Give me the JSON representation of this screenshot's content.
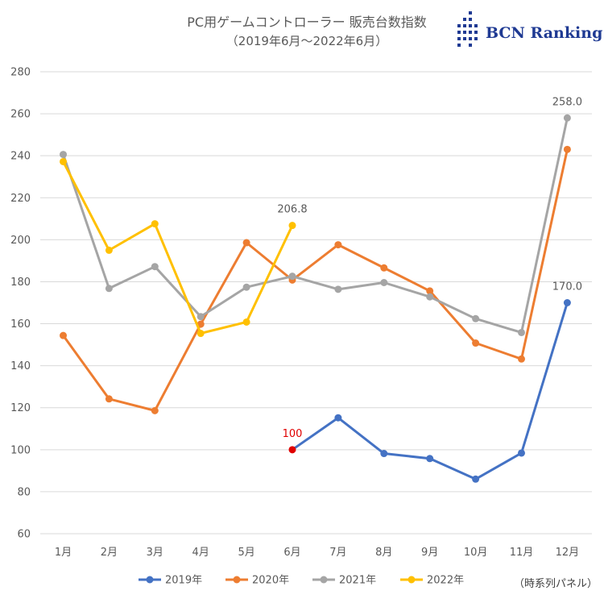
{
  "chart_data": {
    "type": "line",
    "title": "PC用ゲームコントローラー 販売台数指数",
    "subtitle": "（2019年6月～2022年6月）",
    "categories": [
      "1月",
      "2月",
      "3月",
      "4月",
      "5月",
      "6月",
      "7月",
      "8月",
      "9月",
      "10月",
      "11月",
      "12月"
    ],
    "ylim": [
      60,
      280
    ],
    "yticks": [
      60,
      80,
      100,
      120,
      140,
      160,
      180,
      200,
      220,
      240,
      260,
      280
    ],
    "grid": true,
    "legend": "bottom",
    "series": [
      {
        "name": "2019年",
        "color": "#4472c4",
        "values": [
          null,
          null,
          null,
          null,
          null,
          100,
          115.2,
          98.2,
          95.8,
          86.0,
          98.4,
          170.0
        ]
      },
      {
        "name": "2020年",
        "color": "#ed7d31",
        "values": [
          154.4,
          124.2,
          118.6,
          159.8,
          198.6,
          180.8,
          197.6,
          186.6,
          175.6,
          150.8,
          143.2,
          243.0
        ]
      },
      {
        "name": "2021年",
        "color": "#a5a5a5",
        "values": [
          240.6,
          176.8,
          187.2,
          163.4,
          177.4,
          182.6,
          176.4,
          179.6,
          172.8,
          162.4,
          155.8,
          258.0
        ]
      },
      {
        "name": "2022年",
        "color": "#ffc000",
        "values": [
          237.2,
          195.0,
          207.6,
          155.4,
          160.8,
          206.8,
          null,
          null,
          null,
          null,
          null,
          null
        ]
      }
    ],
    "annotations": [
      {
        "series": 0,
        "index": 5,
        "text": "100",
        "color": "#e00000",
        "marker_color": "#e00000"
      },
      {
        "series": 0,
        "index": 11,
        "text": "170.0",
        "color": "#595959"
      },
      {
        "series": 2,
        "index": 11,
        "text": "258.0",
        "color": "#595959"
      },
      {
        "series": 3,
        "index": 5,
        "text": "206.8",
        "color": "#595959"
      }
    ]
  },
  "logo": {
    "text": "BCN Ranking"
  },
  "note": "（時系列パネル）"
}
